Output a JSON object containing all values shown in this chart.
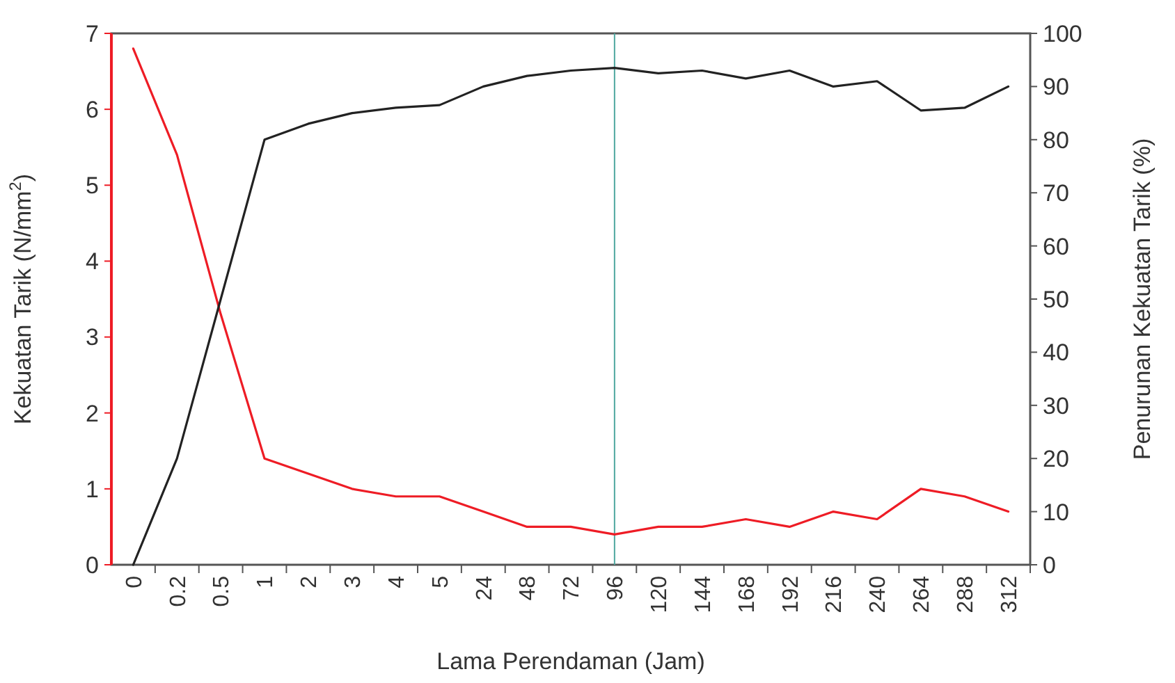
{
  "chart_data": {
    "type": "line",
    "xlabel": "Lama Perendaman (Jam)",
    "ylabel": "Kekuatan Tarik (N/mm$^{2}$)",
    "y2label": "Penurunan Kekuatan Tarik (%)",
    "categories": [
      "0",
      "0.2",
      "0.5",
      "1",
      "2",
      "3",
      "4",
      "5",
      "24",
      "48",
      "72",
      "96",
      "120",
      "144",
      "168",
      "192",
      "216",
      "240",
      "264",
      "288",
      "312"
    ],
    "series": [
      {
        "color": "#ee1c25",
        "values": [
          6.8,
          5.4,
          3.3,
          1.4,
          1.2,
          1.0,
          0.9,
          0.9,
          0.7,
          0.5,
          0.5,
          0.4,
          0.5,
          0.5,
          0.6,
          0.5,
          0.7,
          0.6,
          1.0,
          0.9,
          0.7
        ]
      },
      {
        "color": "#222222",
        "axis": "y2",
        "values": [
          0,
          20,
          50,
          80,
          83,
          85,
          86,
          86.5,
          90,
          92,
          93,
          93.5,
          92.5,
          93,
          91.5,
          93,
          90,
          91,
          85.5,
          86,
          90
        ]
      }
    ],
    "ylim": [
      0,
      7
    ],
    "yticks": [
      0,
      1,
      2,
      3,
      4,
      5,
      6,
      7
    ],
    "y2lim": [
      0,
      100
    ],
    "y2ticks": [
      0,
      10,
      20,
      30,
      40,
      50,
      60,
      70,
      80,
      90,
      100
    ],
    "ref_lines": [
      {
        "axis": "x",
        "value": "96",
        "color": "#4fa8a0"
      }
    ],
    "grid": false,
    "marker": "none",
    "line_style": "solid"
  }
}
